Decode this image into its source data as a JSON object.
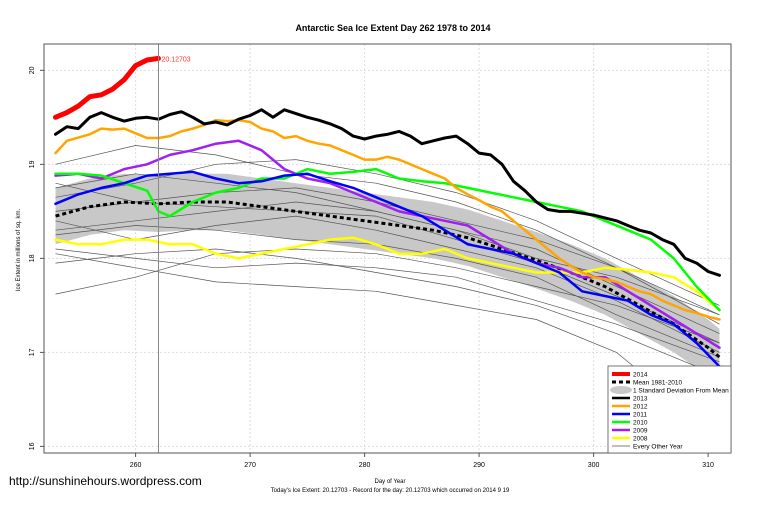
{
  "chart_data": {
    "type": "line",
    "title": "Antarctic Sea Ice Extent Day 262 1978 to 2014",
    "xlabel": "Day of Year",
    "ylabel": "Ice Extent in millions of sq. km.",
    "subtitle": "Today's Ice Extent: 20.12703  - Record for the day: 20.12703 which occurred on 2014 9 19",
    "xlim": [
      252,
      312
    ],
    "ylim": [
      15.93,
      20.28
    ],
    "xticks": [
      260,
      270,
      280,
      290,
      300,
      310
    ],
    "yticks": [
      16,
      17,
      18,
      19,
      20
    ],
    "grid": true,
    "legend_position": "bottom-right",
    "current_day": 262,
    "current_value_label": "20.12703",
    "series": [
      {
        "name": "2014",
        "color": "#ff0000",
        "width": 5,
        "x": [
          253,
          254,
          255,
          256,
          257,
          258,
          259,
          260,
          261,
          262
        ],
        "y": [
          19.5,
          19.55,
          19.62,
          19.72,
          19.74,
          19.8,
          19.9,
          20.05,
          20.11,
          20.127
        ]
      },
      {
        "name": "2013",
        "color": "#000000",
        "width": 3,
        "x": [
          253,
          254,
          255,
          256,
          257,
          258,
          259,
          260,
          261,
          262,
          263,
          264,
          265,
          266,
          267,
          268,
          269,
          270,
          271,
          272,
          273,
          274,
          275,
          276,
          277,
          278,
          279,
          280,
          281,
          282,
          283,
          284,
          285,
          286,
          287,
          288,
          289,
          290,
          291,
          292,
          293,
          294,
          295,
          296,
          297,
          298,
          299,
          300,
          301,
          302,
          303,
          304,
          305,
          306,
          307,
          308,
          309,
          310,
          311
        ],
        "y": [
          19.32,
          19.4,
          19.38,
          19.5,
          19.55,
          19.5,
          19.46,
          19.49,
          19.5,
          19.48,
          19.53,
          19.56,
          19.5,
          19.43,
          19.45,
          19.42,
          19.48,
          19.52,
          19.58,
          19.5,
          19.58,
          19.54,
          19.5,
          19.47,
          19.43,
          19.38,
          19.3,
          19.27,
          19.3,
          19.32,
          19.35,
          19.3,
          19.22,
          19.25,
          19.28,
          19.3,
          19.22,
          19.12,
          19.1,
          19.0,
          18.82,
          18.72,
          18.6,
          18.52,
          18.5,
          18.5,
          18.48,
          18.46,
          18.43,
          18.4,
          18.35,
          18.3,
          18.27,
          18.2,
          18.15,
          18.0,
          17.95,
          17.86,
          17.82
        ]
      },
      {
        "name": "2012",
        "color": "#ffa500",
        "width": 2.5,
        "x": [
          253,
          254,
          256,
          257,
          258,
          259,
          260,
          261,
          262,
          263,
          264,
          265,
          266,
          267,
          268,
          269,
          270,
          271,
          272,
          273,
          274,
          275,
          276,
          277,
          278,
          279,
          280,
          281,
          282,
          283,
          284,
          285,
          286,
          287,
          288,
          289,
          290,
          291,
          292,
          293,
          294,
          295,
          296,
          297,
          298,
          299,
          300,
          301,
          302,
          303,
          304,
          305,
          306,
          307,
          308,
          309,
          310,
          311
        ],
        "y": [
          19.12,
          19.25,
          19.32,
          19.38,
          19.37,
          19.38,
          19.33,
          19.28,
          19.28,
          19.3,
          19.35,
          19.38,
          19.42,
          19.47,
          19.46,
          19.47,
          19.45,
          19.38,
          19.35,
          19.28,
          19.3,
          19.25,
          19.22,
          19.2,
          19.15,
          19.1,
          19.05,
          19.05,
          19.08,
          19.05,
          19.0,
          18.95,
          18.9,
          18.85,
          18.75,
          18.68,
          18.62,
          18.55,
          18.5,
          18.4,
          18.3,
          18.2,
          18.1,
          18.0,
          17.92,
          17.85,
          17.8,
          17.78,
          17.75,
          17.7,
          17.65,
          17.62,
          17.55,
          17.5,
          17.45,
          17.42,
          17.38,
          17.35
        ]
      },
      {
        "name": "2011",
        "color": "#0000ff",
        "width": 2.5,
        "x": [
          253,
          255,
          257,
          259,
          261,
          263,
          265,
          267,
          269,
          271,
          273,
          275,
          277,
          279,
          281,
          283,
          285,
          287,
          289,
          291,
          293,
          295,
          297,
          299,
          301,
          303,
          305,
          307,
          309,
          311
        ],
        "y": [
          18.58,
          18.68,
          18.75,
          18.8,
          18.88,
          18.9,
          18.92,
          18.85,
          18.8,
          18.82,
          18.88,
          18.9,
          18.82,
          18.75,
          18.65,
          18.55,
          18.45,
          18.3,
          18.15,
          18.1,
          18.05,
          17.95,
          17.85,
          17.65,
          17.6,
          17.55,
          17.4,
          17.3,
          17.1,
          16.85
        ]
      },
      {
        "name": "2010",
        "color": "#00ff00",
        "width": 2.5,
        "x": [
          253,
          255,
          257,
          259,
          261,
          262,
          263,
          265,
          267,
          269,
          271,
          273,
          275,
          277,
          279,
          281,
          283,
          285,
          287,
          289,
          291,
          293,
          295,
          297,
          299,
          301,
          303,
          305,
          307,
          309,
          311
        ],
        "y": [
          18.9,
          18.9,
          18.88,
          18.8,
          18.72,
          18.5,
          18.45,
          18.6,
          18.7,
          18.75,
          18.85,
          18.85,
          18.95,
          18.9,
          18.92,
          18.95,
          18.85,
          18.82,
          18.8,
          18.75,
          18.7,
          18.65,
          18.6,
          18.55,
          18.5,
          18.4,
          18.3,
          18.2,
          18.0,
          17.7,
          17.45
        ]
      },
      {
        "name": "2009",
        "color": "#a020f0",
        "width": 2.5,
        "x": [
          253,
          255,
          257,
          259,
          261,
          263,
          265,
          267,
          269,
          271,
          273,
          275,
          277,
          279,
          281,
          283,
          285,
          287,
          289,
          291,
          293,
          295,
          297,
          299,
          301,
          303,
          305,
          307,
          309,
          311
        ],
        "y": [
          18.88,
          18.9,
          18.85,
          18.95,
          19.0,
          19.1,
          19.15,
          19.22,
          19.25,
          19.15,
          18.95,
          18.85,
          18.8,
          18.7,
          18.6,
          18.5,
          18.45,
          18.4,
          18.35,
          18.2,
          18.05,
          17.95,
          17.9,
          17.8,
          17.8,
          17.65,
          17.5,
          17.35,
          17.2,
          17.05
        ]
      },
      {
        "name": "2008",
        "color": "#ffff00",
        "width": 2.5,
        "x": [
          253,
          255,
          257,
          259,
          261,
          263,
          265,
          267,
          269,
          271,
          273,
          275,
          277,
          279,
          281,
          283,
          285,
          287,
          289,
          291,
          293,
          295,
          297,
          299,
          301,
          303,
          305,
          307,
          309,
          311
        ],
        "y": [
          18.2,
          18.15,
          18.15,
          18.2,
          18.2,
          18.15,
          18.15,
          18.05,
          18.0,
          18.05,
          18.1,
          18.15,
          18.2,
          18.22,
          18.15,
          18.05,
          18.05,
          18.1,
          18.0,
          17.95,
          17.9,
          17.85,
          17.85,
          17.85,
          17.9,
          17.88,
          17.85,
          17.8,
          17.65,
          17.45
        ]
      }
    ],
    "mean": {
      "name": "Mean 1981-2010",
      "x": [
        253,
        256,
        259,
        262,
        265,
        268,
        271,
        274,
        277,
        280,
        283,
        286,
        289,
        292,
        295,
        298,
        301,
        304,
        307,
        310,
        311
      ],
      "y": [
        18.45,
        18.55,
        18.6,
        18.58,
        18.6,
        18.6,
        18.55,
        18.5,
        18.45,
        18.4,
        18.35,
        18.3,
        18.22,
        18.1,
        17.98,
        17.85,
        17.7,
        17.5,
        17.3,
        17.05,
        16.95
      ],
      "sd": 0.3
    },
    "sd_label": "1 Standard Deviation From Mean",
    "other_years": {
      "name": "Every Other Year",
      "x": [
        253,
        260,
        267,
        274,
        281,
        288,
        295,
        302,
        311
      ],
      "lines": [
        [
          17.62,
          17.8,
          18.05,
          18.1,
          18.05,
          17.9,
          17.7,
          17.5,
          17.1
        ],
        [
          18.05,
          17.9,
          17.75,
          17.7,
          17.65,
          17.5,
          17.35,
          17.0,
          16.1
        ],
        [
          18.75,
          18.9,
          18.8,
          18.7,
          18.5,
          18.3,
          18.0,
          17.8,
          17.4
        ],
        [
          18.3,
          18.4,
          18.5,
          18.6,
          18.5,
          18.3,
          18.1,
          17.7,
          17.2
        ],
        [
          18.65,
          18.8,
          19.0,
          19.05,
          18.9,
          18.7,
          18.4,
          18.0,
          17.5
        ],
        [
          18.1,
          18.0,
          17.9,
          17.95,
          17.9,
          17.8,
          17.55,
          17.3,
          16.9
        ],
        [
          18.5,
          18.6,
          18.55,
          18.5,
          18.45,
          18.2,
          17.95,
          17.6,
          17.1
        ],
        [
          18.8,
          18.6,
          18.7,
          18.75,
          18.6,
          18.4,
          18.2,
          17.9,
          17.3
        ],
        [
          18.25,
          18.35,
          18.3,
          18.2,
          18.15,
          18.0,
          17.8,
          17.4,
          16.95
        ],
        [
          19.0,
          19.2,
          19.1,
          18.9,
          18.8,
          18.6,
          18.3,
          17.9,
          17.4
        ],
        [
          18.4,
          18.2,
          18.35,
          18.45,
          18.3,
          18.1,
          17.9,
          17.55,
          17.0
        ],
        [
          17.95,
          18.05,
          18.1,
          18.0,
          17.85,
          17.7,
          17.5,
          17.2,
          16.75
        ]
      ]
    }
  },
  "watermark": "http://sunshinehours.wordpress.com"
}
